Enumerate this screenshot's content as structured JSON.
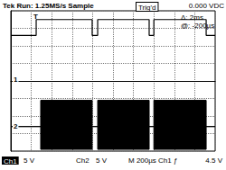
{
  "chart_data": {
    "type": "line",
    "annotations": [
      "Tek Run: 1.25MS/s Sample",
      "Trig'd",
      "0.000 VDC",
      "Δ: 2ms",
      "@: -200µs",
      "T",
      "Ch1",
      "5 V",
      "Ch2",
      "5 V",
      "M 200µs Ch1 ƒ",
      "4.5 V"
    ],
    "series": [
      {
        "name": "1",
        "color": "#000000",
        "type": "line",
        "x": [
          0,
          1.24,
          1.24,
          3.98,
          3.98,
          4.25,
          4.25,
          6.77,
          6.77,
          7.0,
          7.0,
          9.56,
          9.56,
          10
        ],
        "values": [
          2.6,
          2.6,
          3.5,
          3.5,
          2.6,
          2.6,
          3.5,
          3.5,
          2.6,
          2.6,
          3.5,
          3.5,
          2.6,
          2.6
        ]
      },
      {
        "name": "2",
        "color": "#000000",
        "type": "envelope",
        "x": [
          0,
          1.46,
          1.46,
          3.98,
          3.98,
          4.25,
          4.25,
          6.77,
          6.77,
          7.0,
          7.0,
          9.56,
          9.56,
          10
        ],
        "upper": [
          -2.6,
          -2.6,
          -1.1,
          -1.1,
          -2.6,
          -2.6,
          -1.1,
          -1.1,
          -2.6,
          -2.6,
          -1.1,
          -1.1,
          -2.6,
          -2.6
        ],
        "lower": [
          -2.6,
          -2.6,
          -3.9,
          -3.9,
          -2.6,
          -2.6,
          -3.9,
          -3.9,
          -2.6,
          -2.6,
          -3.9,
          -3.9,
          -2.6,
          -2.6
        ]
      }
    ],
    "xlim": [
      0,
      10
    ],
    "xticks": [
      0,
      1,
      2,
      3,
      4,
      5,
      6,
      7,
      8,
      9,
      10
    ],
    "ylim": [
      -4,
      4
    ],
    "yticks": [
      -4,
      -3,
      -2,
      -1,
      0,
      1,
      2,
      3,
      4
    ],
    "grid": true,
    "tick_labels": false
  }
}
